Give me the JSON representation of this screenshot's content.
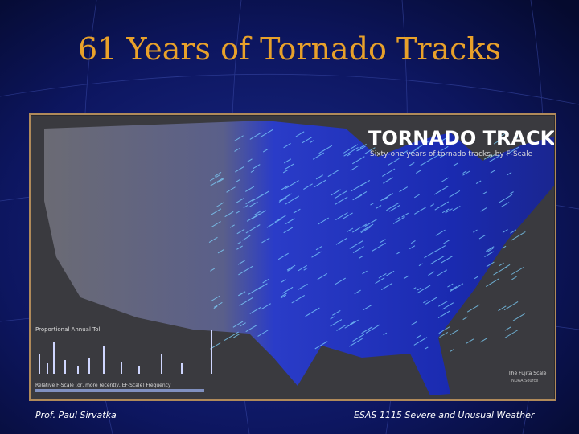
{
  "slide": {
    "title": "61 Years of Tornado Tracks",
    "map": {
      "title": "TORNADO TRACKS",
      "subtitle": "Sixty-one years of tornado tracks, by F-Scale",
      "toll_label": "Proportional Annual Toll",
      "frequency_label": "Relative F-Scale (or, more recently, EF-Scale) Frequency",
      "legend_title": "The Fujita Scale",
      "source": "NOAA Source"
    },
    "footer": {
      "left": "Prof. Paul Sirvatka",
      "right": "ESAS 1115 Severe and Unusual Weather"
    }
  }
}
